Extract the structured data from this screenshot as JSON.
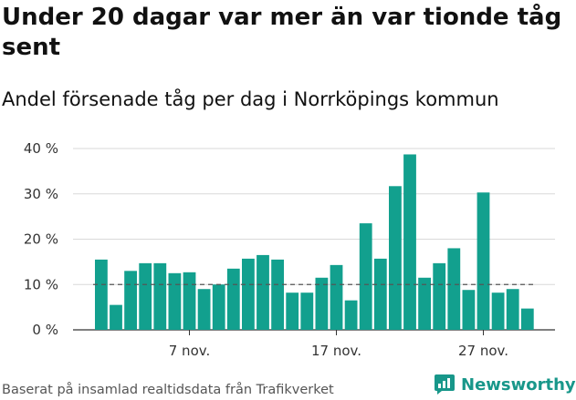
{
  "title": "Under 20 dagar var mer än var tionde tåg sent",
  "subtitle": "Andel försenade tåg per dag i Norrköpings kommun",
  "source": "Baserat på insamlad realtidsdata från Trafikverket",
  "brand": {
    "name": "Newsworthy",
    "icon": "newsworthy-logo-icon",
    "color": "#18978a"
  },
  "colors": {
    "bar": "#12a08e",
    "reference_line": "#555555",
    "grid": "#d9d9d9"
  },
  "chart_data": {
    "type": "bar",
    "x_tick_labels": [
      "7 nov.",
      "17 nov.",
      "27 nov."
    ],
    "x_tick_positions": [
      7,
      17,
      27
    ],
    "x": [
      1,
      2,
      3,
      4,
      5,
      6,
      7,
      8,
      9,
      10,
      11,
      12,
      13,
      14,
      15,
      16,
      17,
      18,
      19,
      20,
      21,
      22,
      23,
      24,
      25,
      26,
      27,
      28,
      29,
      30
    ],
    "values": [
      15.5,
      5.5,
      13,
      14.7,
      14.7,
      12.5,
      12.7,
      9,
      10,
      13.5,
      15.7,
      16.5,
      15.5,
      8.2,
      8.2,
      11.5,
      14.3,
      6.5,
      23.5,
      15.7,
      31.7,
      38.7,
      11.5,
      14.7,
      18,
      8.8,
      30.3,
      8.2,
      9,
      4.7
    ],
    "y_ticks": [
      0,
      10,
      20,
      30,
      40
    ],
    "y_tick_labels": [
      "0 %",
      "10 %",
      "20 %",
      "30 %",
      "40 %"
    ],
    "ylim": [
      0,
      40
    ],
    "reference_line": 10,
    "grid": true
  }
}
